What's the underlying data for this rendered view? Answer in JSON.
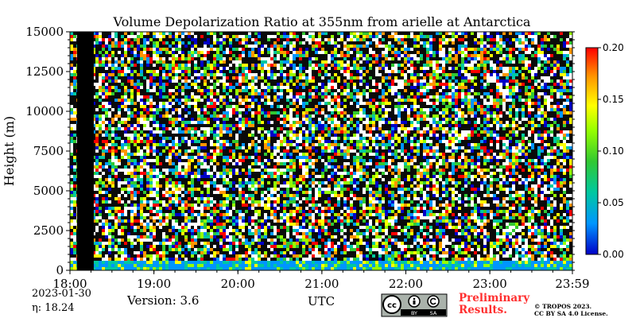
{
  "chart_data": {
    "type": "heatmap",
    "title": "Volume Depolarization Ratio at 355nm from arielle at Antarctica",
    "xlabel": "UTC",
    "ylabel": "Height (m)",
    "xlim": [
      "18:00",
      "23:59"
    ],
    "ylim": [
      0,
      15000
    ],
    "x_ticks": [
      "18:00",
      "19:00",
      "20:00",
      "21:00",
      "22:00",
      "23:00",
      "23:59"
    ],
    "y_ticks": [
      "0",
      "2500",
      "5000",
      "7500",
      "10000",
      "12500",
      "15000"
    ],
    "colorbar": {
      "range": [
        0.0,
        0.2
      ],
      "ticks": [
        "0.00",
        "0.05",
        "0.10",
        "0.15",
        "0.20"
      ],
      "colormap": [
        "#0000c8",
        "#0096ff",
        "#00c8a0",
        "#32c832",
        "#96ff00",
        "#ffff00",
        "#ff9600",
        "#ff0000"
      ]
    },
    "no_data_interval": [
      "18:05",
      "18:17"
    ],
    "boundary_layer": {
      "height_range_m": [
        0,
        600
      ],
      "typical_depol": [
        0.02,
        0.1
      ]
    },
    "background": "noise"
  },
  "footer": {
    "date": "2023-01-30",
    "eta": "η:  18.24",
    "version": "Version: 3.6",
    "utc_label": "UTC",
    "prelim_line1": "Preliminary",
    "prelim_line2": "Results.",
    "copyright_line1": "© TROPOS 2023.",
    "copyright_line2": "CC BY SA 4.0 License.",
    "license_badge": [
      "BY",
      "SA"
    ]
  }
}
